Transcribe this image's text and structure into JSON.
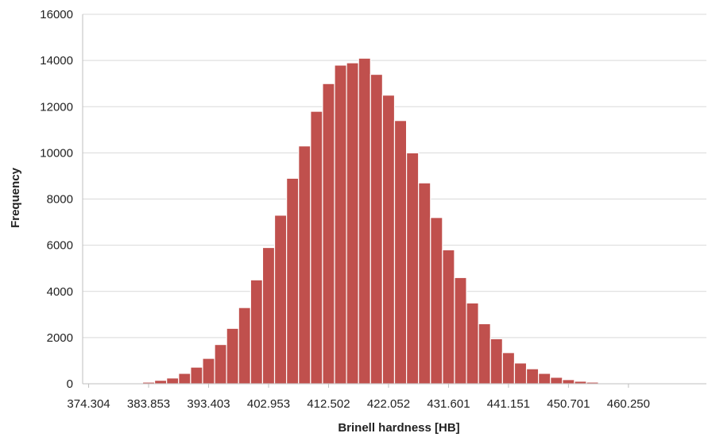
{
  "chart_data": {
    "type": "bar",
    "title": "",
    "xlabel": "Brinell hardness [HB]",
    "ylabel": "Frequency",
    "ylim": [
      0,
      16000
    ],
    "yticks": [
      0,
      2000,
      4000,
      6000,
      8000,
      10000,
      12000,
      14000,
      16000
    ],
    "ytick_labels": [
      "0",
      "2000",
      "4000",
      "6000",
      "8000",
      "10000",
      "12000",
      "14000",
      "16000"
    ],
    "xtick_labels": [
      "374.304",
      "383.853",
      "393.403",
      "402.953",
      "412.502",
      "422.052",
      "431.601",
      "441.151",
      "450.701",
      "460.250"
    ],
    "grid": true,
    "bar_color": "#c0504d",
    "bar_edge_color": "#ffffff",
    "values": [
      0,
      0,
      0,
      0,
      0,
      70,
      150,
      250,
      450,
      720,
      1100,
      1700,
      2400,
      3300,
      4500,
      5900,
      7300,
      8900,
      10300,
      11800,
      13000,
      13800,
      13900,
      14100,
      13400,
      12500,
      11400,
      10000,
      8700,
      7200,
      5800,
      4600,
      3500,
      2600,
      1950,
      1350,
      900,
      650,
      450,
      280,
      180,
      110,
      70,
      30,
      15,
      0,
      0,
      0,
      0,
      0,
      0,
      0
    ]
  }
}
